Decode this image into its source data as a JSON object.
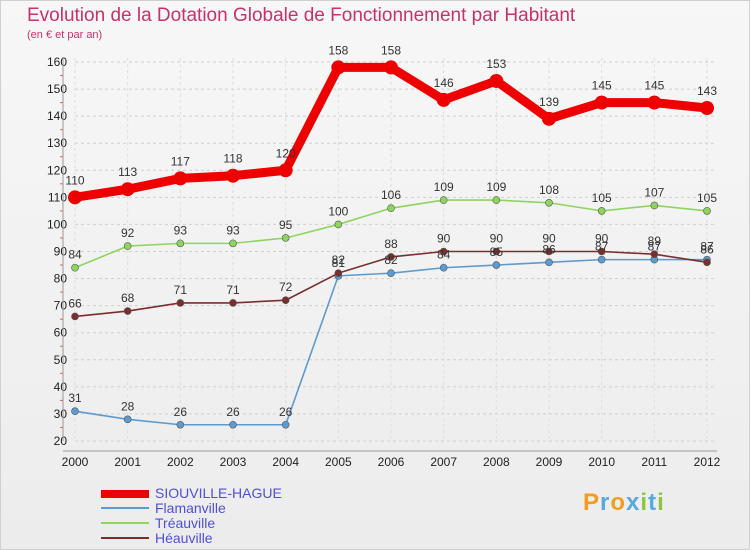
{
  "header": {
    "title": "Evolution de la Dotation Globale de Fonctionnement par Habitant",
    "subtitle": "(en € et par an)"
  },
  "chart_data": {
    "type": "line",
    "title": "Evolution de la Dotation Globale de Fonctionnement par Habitant",
    "ylabel": "(en € et par an)",
    "xlabel": "",
    "ylim": [
      20,
      160
    ],
    "yticks": [
      20,
      30,
      40,
      50,
      60,
      70,
      80,
      90,
      100,
      110,
      120,
      130,
      140,
      150,
      160
    ],
    "categories": [
      "2000",
      "2001",
      "2002",
      "2003",
      "2004",
      "2005",
      "2006",
      "2007",
      "2008",
      "2009",
      "2010",
      "2011",
      "2012"
    ],
    "grid": "horizontal dashed",
    "series": [
      {
        "name": "SIOUVILLE-HAGUE",
        "color": "#ee0000",
        "values": [
          110,
          113,
          117,
          118,
          120,
          158,
          158,
          146,
          153,
          139,
          145,
          145,
          143
        ]
      },
      {
        "name": "Flamanville",
        "color": "#5b9bcf",
        "values": [
          31,
          28,
          26,
          26,
          26,
          81,
          82,
          84,
          85,
          86,
          87,
          87,
          87
        ]
      },
      {
        "name": "Tréauville",
        "color": "#8fd45f",
        "values": [
          84,
          92,
          93,
          93,
          95,
          100,
          106,
          109,
          109,
          108,
          105,
          107,
          105
        ]
      },
      {
        "name": "Héauville",
        "color": "#7a2e2e",
        "values": [
          66,
          68,
          71,
          71,
          72,
          82,
          88,
          90,
          90,
          90,
          90,
          89,
          86
        ]
      }
    ]
  },
  "logo": {
    "text": "Proxiti",
    "letters": [
      "P",
      "r",
      "o",
      "x",
      "i",
      "t",
      "i"
    ],
    "colors": [
      "#f29d1f",
      "#5aa8e0",
      "#f29d1f",
      "#5aa8e0",
      "#8cc63f",
      "#5aa8e0",
      "#8cc63f"
    ]
  }
}
